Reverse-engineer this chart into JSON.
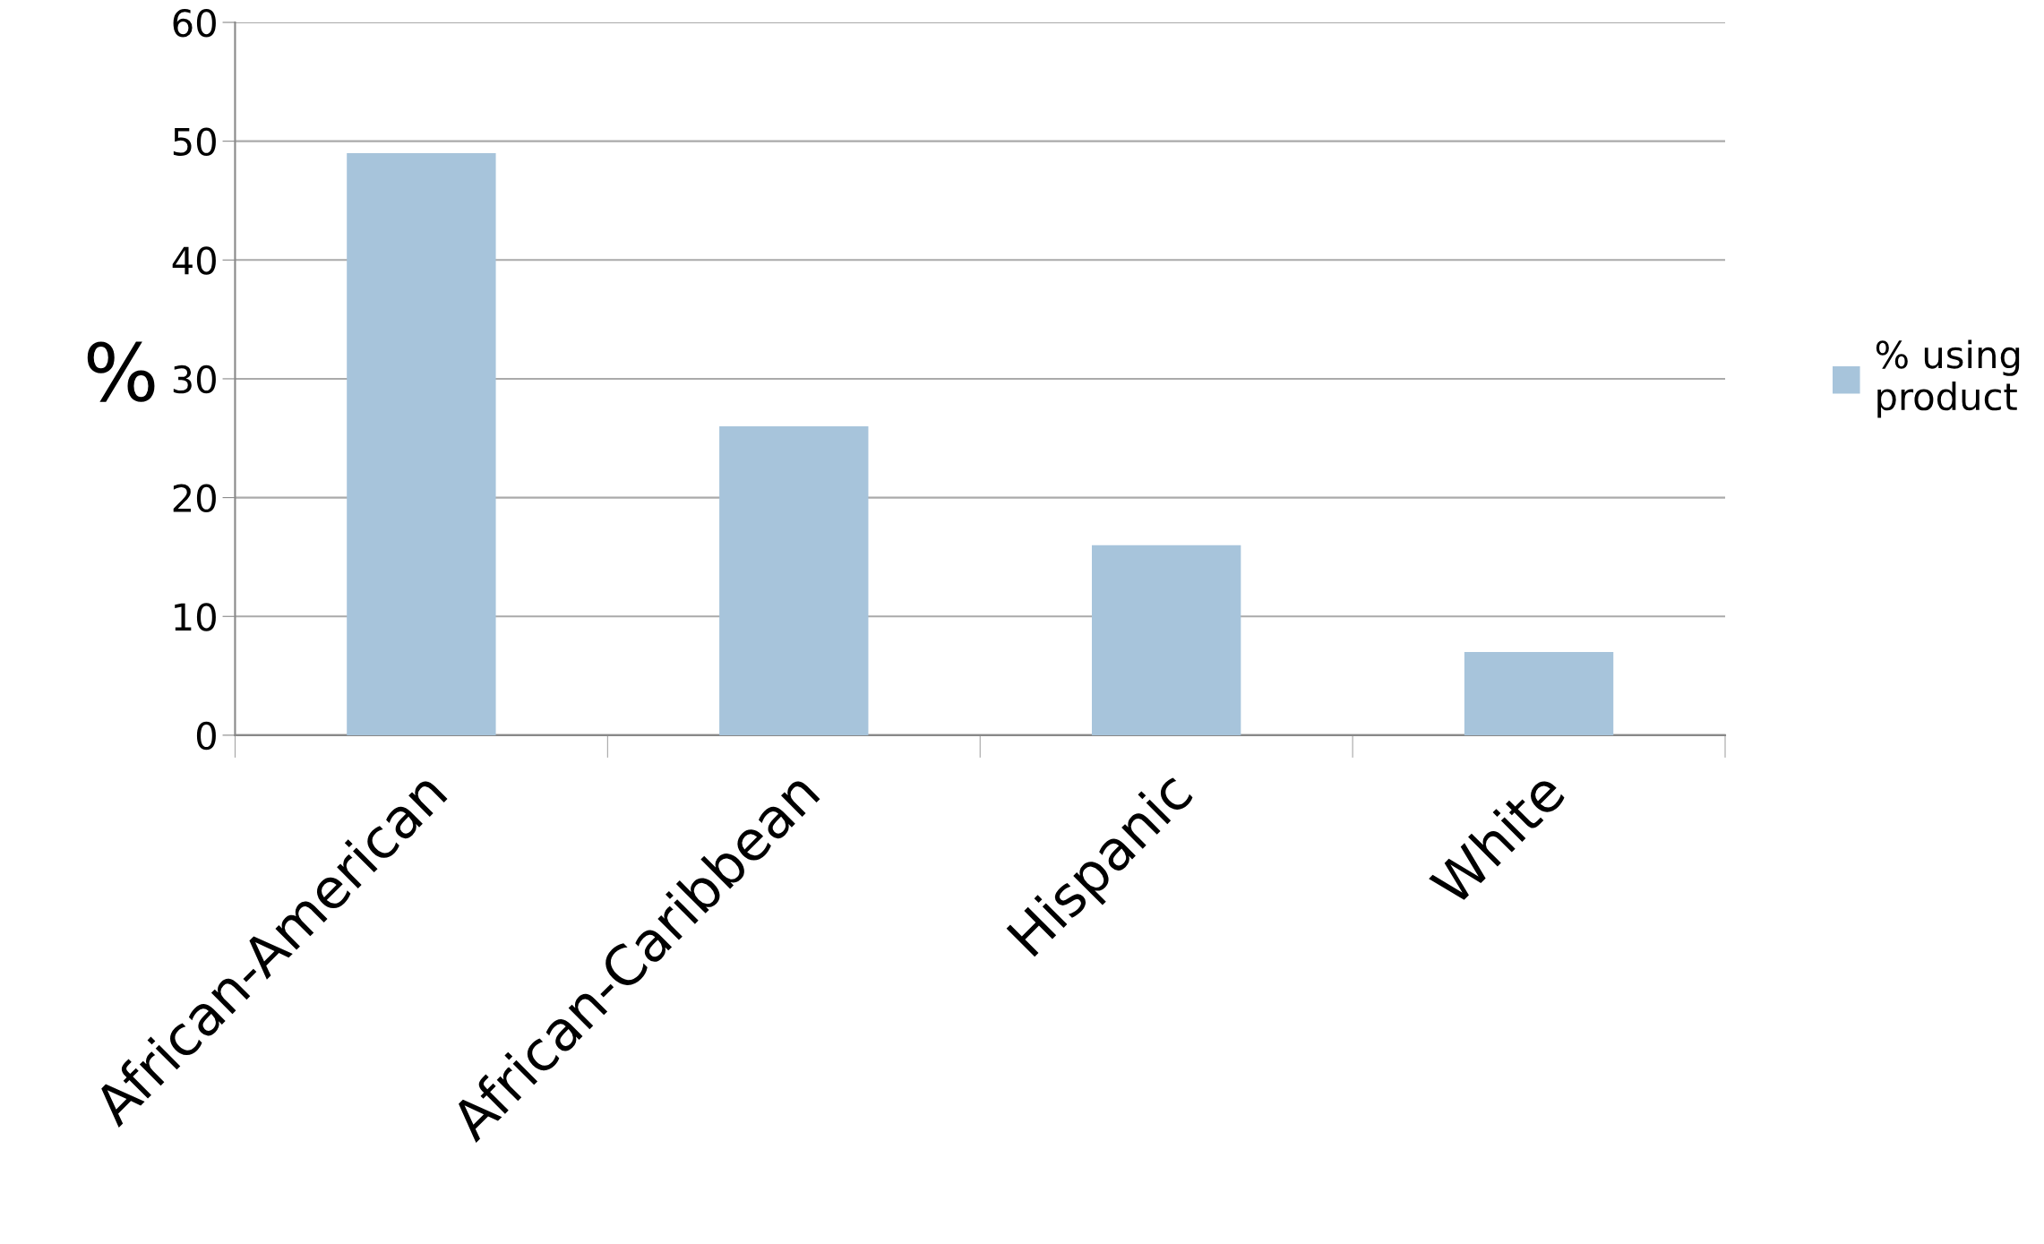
{
  "chart_data": {
    "type": "bar",
    "ylabel": "%",
    "categories": [
      "African-American",
      "African-Caribbean",
      "Hispanic",
      "White"
    ],
    "series": [
      {
        "name": "% using product",
        "color": "#a7c4db",
        "values": [
          49,
          26,
          16,
          7
        ]
      }
    ],
    "ylim": [
      0,
      60
    ],
    "yticks": [
      0,
      10,
      20,
      30,
      40,
      50,
      60
    ],
    "grid": "y",
    "legend": "right"
  }
}
